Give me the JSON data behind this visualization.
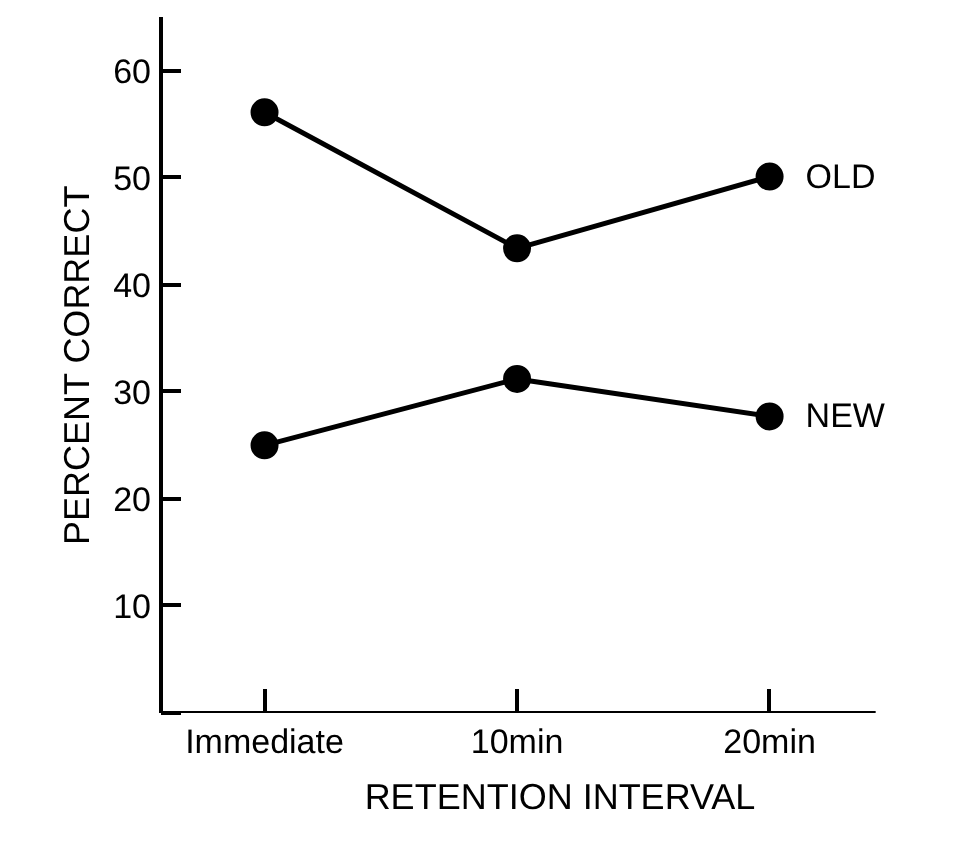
{
  "chart_data": {
    "type": "line",
    "xlabel": "RETENTION INTERVAL",
    "ylabel": "PERCENT CORRECT",
    "categories": [
      "Immediate",
      "10min",
      "20min"
    ],
    "ylim": [
      0,
      65
    ],
    "yticks": [
      {
        "value": 0,
        "label": null
      },
      10,
      20,
      30,
      40,
      50,
      60
    ],
    "series": [
      {
        "name": "OLD",
        "color": "#000000",
        "values": [
          56.1,
          43.4,
          50.1
        ]
      },
      {
        "name": "NEW",
        "color": "#000000",
        "values": [
          25,
          31.2,
          27.7
        ]
      }
    ],
    "marker": "circle",
    "line_style": "solid",
    "grid": false
  }
}
